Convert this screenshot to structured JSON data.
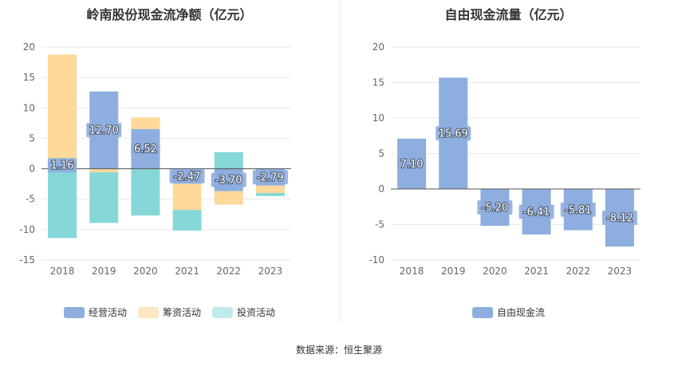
{
  "chart_data": [
    {
      "type": "bar",
      "stacked": true,
      "title": "岭南股份现金流净额（亿元）",
      "categories": [
        "2018",
        "2019",
        "2020",
        "2021",
        "2022",
        "2023"
      ],
      "series": [
        {
          "name": "经营活动",
          "color": "#8eaedf",
          "values": [
            1.16,
            12.7,
            6.52,
            -2.47,
            -3.7,
            -2.79
          ]
        },
        {
          "name": "筹资活动",
          "color": "#fdd99a",
          "values": [
            17.6,
            -0.6,
            1.9,
            -4.3,
            -2.2,
            -1.2
          ]
        },
        {
          "name": "投资活动",
          "color": "#86d7d7",
          "values": [
            -11.4,
            -8.3,
            -7.7,
            -3.4,
            2.7,
            -0.5
          ]
        }
      ],
      "data_labels": [
        "1.16",
        "12.70",
        "6.52",
        "-2.47",
        "-3.70",
        "-2.79"
      ],
      "ylim": [
        -15,
        20
      ],
      "yticks": [
        -15,
        -10,
        -5,
        0,
        5,
        10,
        15,
        20
      ],
      "grid": true,
      "legend_position": "bottom"
    },
    {
      "type": "bar",
      "title": "自由现金流量（亿元）",
      "categories": [
        "2018",
        "2019",
        "2020",
        "2021",
        "2022",
        "2023"
      ],
      "series": [
        {
          "name": "自由现金流",
          "color": "#8eaedf",
          "values": [
            7.1,
            15.69,
            -5.2,
            -6.41,
            -5.81,
            -8.12
          ]
        }
      ],
      "data_labels": [
        "7.10",
        "15.69",
        "-5.20",
        "-6.41",
        "-5.81",
        "-8.12"
      ],
      "ylim": [
        -10,
        20
      ],
      "yticks": [
        -10,
        -5,
        0,
        5,
        10,
        15,
        20
      ],
      "grid": true,
      "legend_position": "bottom"
    }
  ],
  "footer": {
    "source": "数据来源：恒生聚源"
  }
}
